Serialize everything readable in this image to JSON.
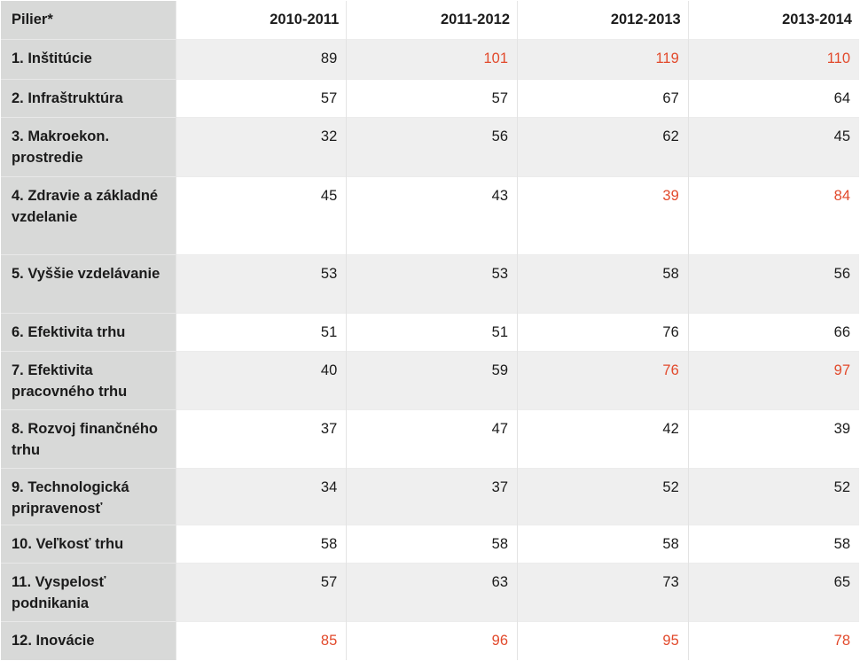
{
  "table": {
    "header": [
      "Pilier*",
      "2010-2011",
      "2011-2012",
      "2012-2013",
      "2013-2014"
    ],
    "accent_color": "#e24a2c",
    "rows": [
      {
        "label": "1. Inštitúcie",
        "values": [
          "89",
          "101",
          "119",
          "110"
        ],
        "highlight": [
          false,
          true,
          true,
          true
        ]
      },
      {
        "label": "2. Infraštruktúra",
        "values": [
          "57",
          "57",
          "67",
          "64"
        ],
        "highlight": [
          false,
          false,
          false,
          false
        ]
      },
      {
        "label": "3. Makroekon. prostredie",
        "values": [
          "32",
          "56",
          "62",
          "45"
        ],
        "highlight": [
          false,
          false,
          false,
          false
        ]
      },
      {
        "label": "4. Zdravie a základné vzdelanie",
        "values": [
          "45",
          "43",
          "39",
          "84"
        ],
        "highlight": [
          false,
          false,
          true,
          true
        ]
      },
      {
        "label": "5. Vyššie vzdelávanie",
        "values": [
          "53",
          "53",
          "58",
          "56"
        ],
        "highlight": [
          false,
          false,
          false,
          false
        ]
      },
      {
        "label": "6. Efektivita trhu",
        "values": [
          "51",
          "51",
          "76",
          "66"
        ],
        "highlight": [
          false,
          false,
          false,
          false
        ]
      },
      {
        "label": "7. Efektivita pracovného trhu",
        "values": [
          "40",
          "59",
          "76",
          "97"
        ],
        "highlight": [
          false,
          false,
          true,
          true
        ]
      },
      {
        "label": "8. Rozvoj finančného trhu",
        "values": [
          "37",
          "47",
          "42",
          "39"
        ],
        "highlight": [
          false,
          false,
          false,
          false
        ]
      },
      {
        "label": "9. Technologická pripravenosť",
        "values": [
          "34",
          "37",
          "52",
          "52"
        ],
        "highlight": [
          false,
          false,
          false,
          false
        ]
      },
      {
        "label": "10. Veľkosť trhu",
        "values": [
          "58",
          "58",
          "58",
          "58"
        ],
        "highlight": [
          false,
          false,
          false,
          false
        ]
      },
      {
        "label": "11. Vyspelosť podnikania",
        "values": [
          "57",
          "63",
          "73",
          "65"
        ],
        "highlight": [
          false,
          false,
          false,
          false
        ]
      },
      {
        "label": "12. Inovácie",
        "values": [
          "85",
          "96",
          "95",
          "78"
        ],
        "highlight": [
          true,
          true,
          true,
          true
        ]
      }
    ]
  }
}
